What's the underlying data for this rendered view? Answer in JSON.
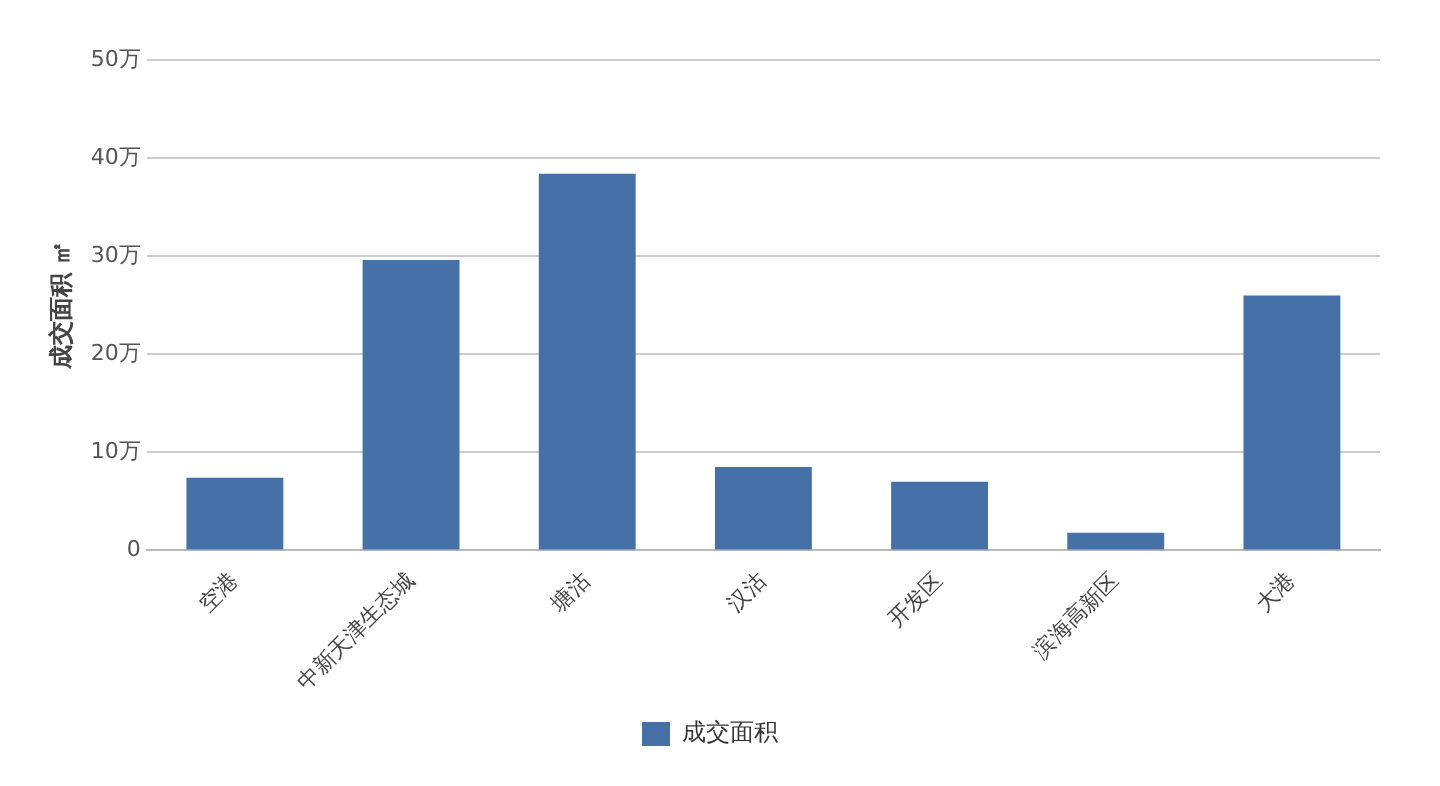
{
  "chart_data": {
    "type": "bar",
    "ylabel": "成交面积 ㎡",
    "categories": [
      "空港",
      "中新天津生态城",
      "塘沽",
      "汉沽",
      "开发区",
      "滨海高新区",
      "大港"
    ],
    "series": [
      {
        "name": "成交面积",
        "color": "#4570a8",
        "values": [
          7.4,
          29.6,
          38.4,
          8.5,
          7.0,
          1.8,
          26.0
        ]
      }
    ],
    "ylim": [
      0,
      50
    ],
    "yticks": [
      0,
      {
        "value": 10,
        "label": "10万"
      },
      {
        "value": 20,
        "label": "20万"
      },
      {
        "value": 30,
        "label": "30万"
      },
      {
        "value": 40,
        "label": "40万"
      },
      {
        "value": 50,
        "label": "50万"
      }
    ],
    "grid": "y",
    "legend": "bottom"
  }
}
